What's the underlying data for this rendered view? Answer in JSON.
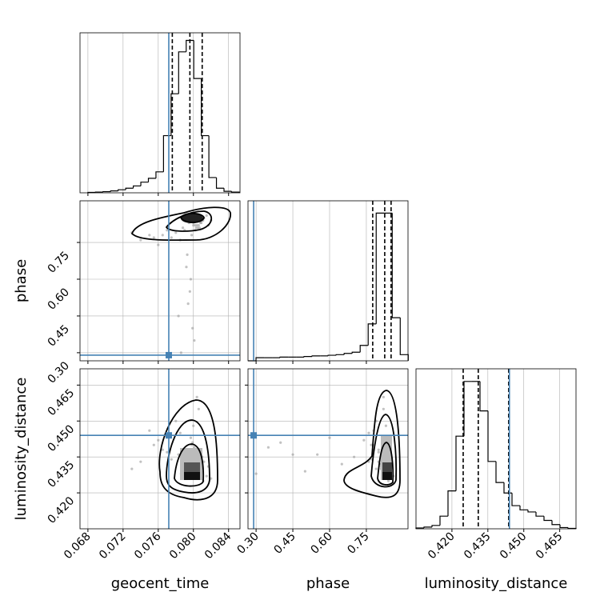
{
  "chart_data": {
    "type": "corner",
    "parameters": [
      {
        "label": "geocent_time",
        "lim": [
          0.0671,
          0.0853
        ],
        "ticks": [
          0.068,
          0.072,
          0.076,
          {
            "value": 0.08,
            "label": "0.080"
          },
          0.084
        ],
        "truth": 0.0772,
        "quantiles": [
          0.0776,
          0.0796,
          0.081
        ],
        "bins": [
          0.068,
          0.06886,
          0.06972,
          0.07058,
          0.07144,
          0.0723,
          0.07316,
          0.07402,
          0.07488,
          0.07574,
          0.0766,
          0.07746,
          0.07832,
          0.07918,
          0.08004,
          0.0809,
          0.08176,
          0.08262,
          0.08348,
          0.08434,
          0.0852
        ],
        "counts": [
          1,
          2,
          3,
          5,
          8,
          12,
          18,
          28,
          38,
          55,
          150,
          260,
          370,
          400,
          300,
          150,
          40,
          12,
          4,
          2
        ],
        "count_lim": [
          0,
          420
        ]
      },
      {
        "label": "phase",
        "lim": [
          0.267,
          0.92
        ],
        "ticks": [
          {
            "value": 0.3,
            "label": "0.30"
          },
          0.45,
          {
            "value": 0.6,
            "label": "0.60"
          },
          0.75
        ],
        "truth": 0.29,
        "quantiles": [
          0.776,
          0.825,
          0.851
        ],
        "bins": [
          0.267,
          0.2997,
          0.3324,
          0.3651,
          0.3978,
          0.4305,
          0.4632,
          0.4959,
          0.5286,
          0.5613,
          0.594,
          0.6267,
          0.6594,
          0.6921,
          0.7248,
          0.7575,
          0.7902,
          0.8229,
          0.8556,
          0.8883,
          0.921
        ],
        "counts": [
          0,
          5,
          5,
          5,
          6,
          6,
          6,
          7,
          8,
          8,
          9,
          10,
          12,
          14,
          25,
          60,
          240,
          240,
          70,
          10
        ],
        "count_lim": [
          0,
          260
        ]
      },
      {
        "label": "luminosity_distance",
        "lim": [
          0.405,
          0.4718
        ],
        "ticks": [
          {
            "value": 0.42,
            "label": "0.420"
          },
          0.435,
          {
            "value": 0.45,
            "label": "0.450"
          },
          0.465
        ],
        "truth": 0.444,
        "quantiles": [
          0.4247,
          0.431,
          0.4437
        ],
        "bins": [
          0.405,
          0.40834,
          0.41168,
          0.41502,
          0.41836,
          0.4217,
          0.42504,
          0.42838,
          0.43172,
          0.43506,
          0.4384,
          0.44174,
          0.44508,
          0.44842,
          0.45176,
          0.4551,
          0.45844,
          0.46178,
          0.46512,
          0.46846,
          0.4718
        ],
        "counts": [
          2,
          4,
          8,
          30,
          90,
          220,
          350,
          350,
          280,
          160,
          110,
          85,
          55,
          45,
          40,
          30,
          20,
          10,
          3,
          1
        ],
        "count_lim": [
          0,
          380
        ]
      }
    ],
    "samples": [
      [
        0.08,
        0.0805,
        0.0795,
        0.081,
        0.079,
        0.0802,
        0.0798,
        0.0812,
        0.0785,
        0.0808,
        0.0796,
        0.0803,
        0.078,
        0.0815,
        0.0799,
        0.0775,
        0.0806,
        0.0792,
        0.077,
        0.082,
        0.076,
        0.0801,
        0.0788,
        0.075,
        0.0809,
        0.0794,
        0.074,
        0.0804,
        0.0783,
        0.073,
        0.0811,
        0.0797,
        0.0765,
        0.0807,
        0.0786,
        0.08,
        0.0793,
        0.0817,
        0.0755,
        0.0802
      ],
      [
        0.82,
        0.81,
        0.83,
        0.84,
        0.8,
        0.82,
        0.78,
        0.85,
        0.76,
        0.83,
        0.55,
        0.81,
        0.79,
        0.86,
        0.4,
        0.77,
        0.82,
        0.65,
        0.8,
        0.84,
        0.74,
        0.35,
        0.81,
        0.78,
        0.83,
        0.5,
        0.76,
        0.82,
        0.45,
        0.79,
        0.84,
        0.6,
        0.78,
        0.81,
        0.3,
        0.83,
        0.7,
        0.82,
        0.77,
        0.8
      ],
      [
        0.43,
        0.432,
        0.428,
        0.435,
        0.438,
        0.431,
        0.44,
        0.433,
        0.445,
        0.429,
        0.436,
        0.43,
        0.45,
        0.427,
        0.441,
        0.434,
        0.455,
        0.432,
        0.437,
        0.426,
        0.442,
        0.439,
        0.431,
        0.446,
        0.434,
        0.429,
        0.433,
        0.46,
        0.436,
        0.43,
        0.425,
        0.443,
        0.438,
        0.432,
        0.428,
        0.448,
        0.435,
        0.431,
        0.44,
        0.433
      ]
    ]
  }
}
